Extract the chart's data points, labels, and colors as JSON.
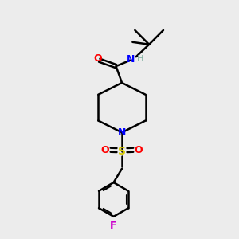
{
  "bg_color": "#ececec",
  "line_color": "#000000",
  "bond_width": 1.8,
  "figsize": [
    3.0,
    3.0
  ],
  "dpi": 100,
  "xlim": [
    0,
    10
  ],
  "ylim": [
    0,
    10
  ]
}
